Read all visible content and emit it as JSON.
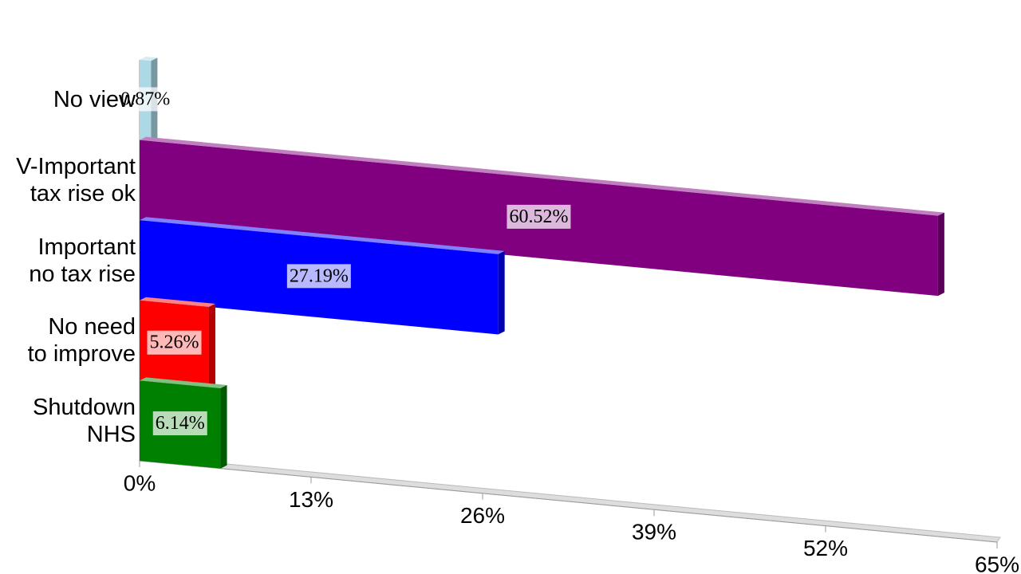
{
  "chart_data": {
    "type": "bar",
    "orientation": "horizontal",
    "categories": [
      "No view",
      "V-Important\ntax rise ok",
      "Important\nno tax rise",
      "No need\nto improve",
      "Shutdown\nNHS"
    ],
    "values": [
      0.87,
      60.52,
      27.19,
      5.26,
      6.14
    ],
    "value_labels": [
      "0.87%",
      "60.52%",
      "27.19%",
      "5.26%",
      "6.14%"
    ],
    "colors": [
      "#add8e6",
      "#800080",
      "#0000ff",
      "#ff0000",
      "#008000"
    ],
    "xlim": [
      0,
      65
    ],
    "xticks": [
      {
        "value": 0,
        "label": "0%"
      },
      {
        "value": 13,
        "label": "13%"
      },
      {
        "value": 26,
        "label": "26%"
      },
      {
        "value": 39,
        "label": "39%"
      },
      {
        "value": 52,
        "label": "52%"
      },
      {
        "value": 65,
        "label": "65%"
      }
    ]
  }
}
